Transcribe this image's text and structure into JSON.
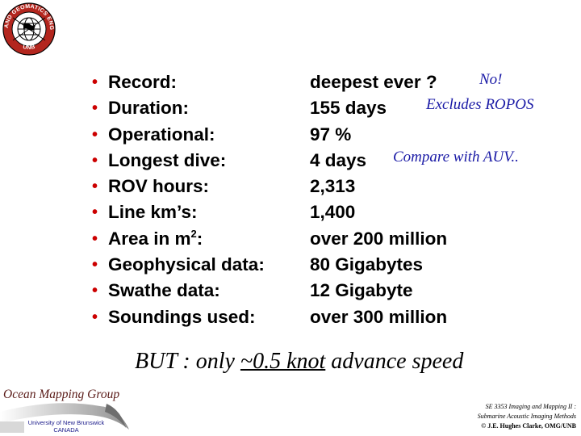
{
  "logo": {
    "ring_text_top": "GEODESY AND GEOMATICS ENGINEERING",
    "ring_text_bottom": "UNB"
  },
  "rows": [
    {
      "label": "Record:",
      "value": "deepest ever ?",
      "note": "No!"
    },
    {
      "label": "Duration:",
      "value": "155 days",
      "note": "Excludes ROPOS"
    },
    {
      "label": "Operational:",
      "value": "97 %",
      "note": ""
    },
    {
      "label": "Longest dive:",
      "value": "4 days",
      "note": "Compare with AUV.."
    },
    {
      "label": "ROV hours:",
      "value": "2,313",
      "note": ""
    },
    {
      "label": "Line km’s:",
      "value": "1,400",
      "note": ""
    },
    {
      "label_prefix": "Area in m",
      "label_sup": "2",
      "label_suffix": ":",
      "value": "over 200 million",
      "note": ""
    },
    {
      "label": "Geophysical data:",
      "value": "80 Gigabytes",
      "note": ""
    },
    {
      "label": "Swathe data:",
      "value": "12 Gigabyte",
      "note": ""
    },
    {
      "label": "Soundings used:",
      "value": "over 300 million",
      "note": ""
    }
  ],
  "bullet": "•",
  "bottom_line": {
    "prefix": "BUT : only ",
    "emphasis": "~0.5 knot",
    "suffix": " advance speed"
  },
  "footer": {
    "group_name": "Ocean Mapping Group",
    "university": "University of New Brunswick",
    "country": "CANADA",
    "course_line1": "SE 3353 Imaging and Mapping II :",
    "course_line2": "Submarine Acoustic Imaging Methods",
    "copyright": "© J.E. Hughes Clarke, OMG/UNB"
  },
  "colors": {
    "bullet": "#cc0000",
    "note": "#1a1aa6",
    "logo_red": "#b3261e",
    "group_name": "#5a1b18"
  }
}
